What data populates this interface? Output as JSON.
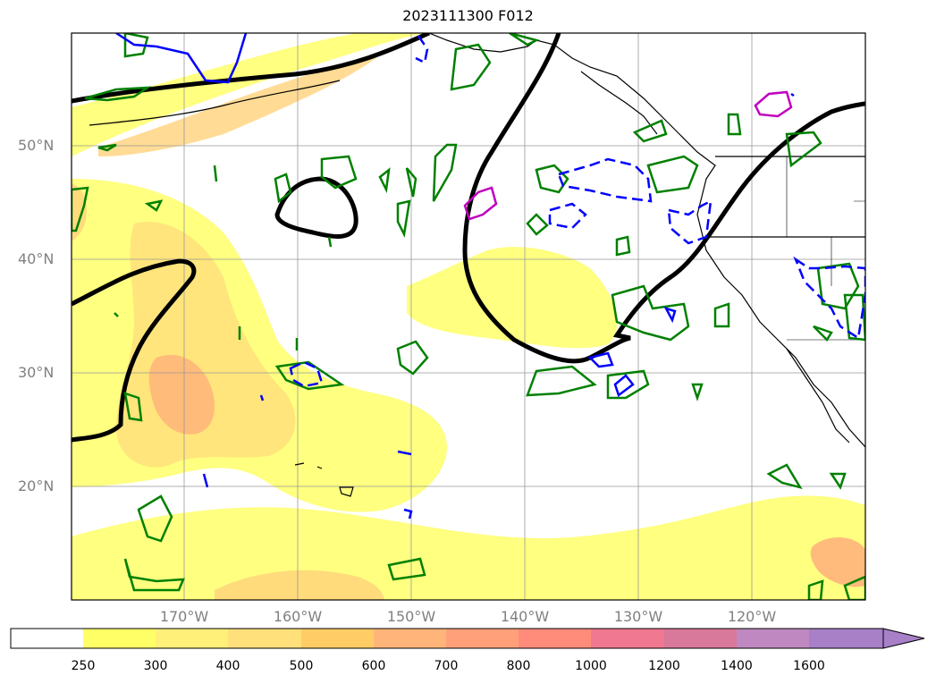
{
  "title": "2023111300 F012",
  "map": {
    "projection": "PlateCarree",
    "lon_range": [
      -180,
      -110
    ],
    "lat_range": [
      10,
      60
    ],
    "lat_labels": [
      "50°N",
      "40°N",
      "30°N",
      "20°N"
    ],
    "lon_labels": [
      "170°W",
      "160°W",
      "150°W",
      "140°W",
      "130°W",
      "120°W"
    ],
    "gridlines": true,
    "colors": {
      "contour_black": "#000000",
      "contour_green": "#008000",
      "contour_blue": "#0000ff",
      "contour_magenta": "#c000c0",
      "coastline": "#000000"
    }
  },
  "colorbar": {
    "labels": [
      "250",
      "300",
      "400",
      "500",
      "600",
      "700",
      "800",
      "1000",
      "1200",
      "1400",
      "1600"
    ],
    "colors": [
      "#ffffff",
      "#ffff66",
      "#fff07a",
      "#ffe07a",
      "#ffcc66",
      "#ffb57a",
      "#ffa07a",
      "#ff8c7a",
      "#f07890",
      "#d8789a",
      "#c088c0",
      "#a880c8"
    ],
    "extend": "max"
  }
}
